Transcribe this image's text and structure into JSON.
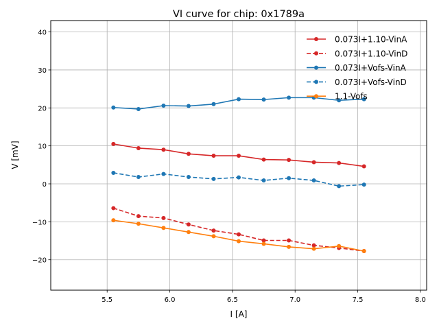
{
  "chart_data": {
    "type": "line",
    "title": "VI curve for chip: 0x1789a",
    "xlabel": "I [A]",
    "ylabel": "V [mV]",
    "xlim": [
      5.05,
      8.05
    ],
    "ylim": [
      -28,
      43
    ],
    "xticks": [
      5.5,
      6.0,
      6.5,
      7.0,
      7.5,
      8.0
    ],
    "xtick_labels": [
      "5.5",
      "6.0",
      "6.5",
      "7.0",
      "7.5",
      "8.0"
    ],
    "yticks": [
      -20,
      -10,
      0,
      10,
      20,
      30,
      40
    ],
    "ytick_labels": [
      "−20",
      "−10",
      "0",
      "10",
      "20",
      "30",
      "40"
    ],
    "grid": true,
    "legend_position": "top-right",
    "x": [
      5.55,
      5.75,
      5.95,
      6.15,
      6.35,
      6.55,
      6.75,
      6.95,
      7.15,
      7.35,
      7.55
    ],
    "series": [
      {
        "name": "0.073I+1.10-VinA",
        "color": "#d62728",
        "dashed": false,
        "values": [
          10.5,
          9.4,
          9.0,
          7.9,
          7.4,
          7.4,
          6.4,
          6.3,
          5.7,
          5.5,
          4.6
        ]
      },
      {
        "name": "0.073I+1.10-VinD",
        "color": "#d62728",
        "dashed": true,
        "values": [
          -6.4,
          -8.5,
          -9.0,
          -10.7,
          -12.3,
          -13.3,
          -14.9,
          -14.9,
          -16.2,
          -16.9,
          -17.7
        ]
      },
      {
        "name": "0.073I+Vofs-VinA",
        "color": "#1f77b4",
        "dashed": false,
        "values": [
          20.1,
          19.7,
          20.6,
          20.5,
          21.0,
          22.3,
          22.2,
          22.7,
          22.7,
          22.0,
          22.3
        ]
      },
      {
        "name": "0.073I+Vofs-VinD",
        "color": "#1f77b4",
        "dashed": true,
        "values": [
          2.9,
          1.8,
          2.6,
          1.8,
          1.3,
          1.7,
          0.9,
          1.5,
          0.9,
          -0.6,
          -0.2
        ]
      },
      {
        "name": "1.1-Vofs",
        "color": "#ff7f0e",
        "dashed": false,
        "values": [
          -9.6,
          -10.5,
          -11.6,
          -12.7,
          -13.8,
          -15.1,
          -15.8,
          -16.6,
          -17.1,
          -16.4,
          -17.7
        ]
      }
    ]
  }
}
